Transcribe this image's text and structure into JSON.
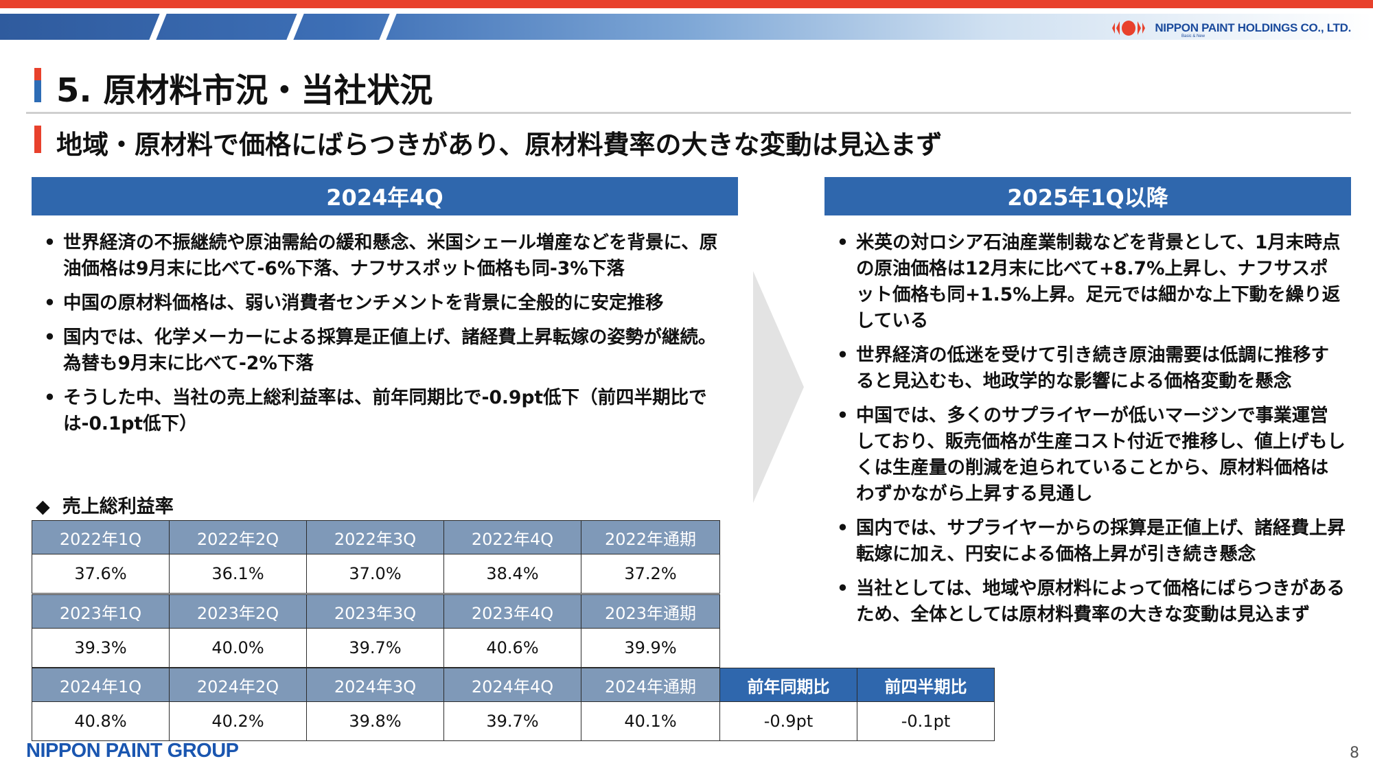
{
  "header": {
    "company": "NIPPON PAINT HOLDINGS CO., LTD.",
    "tagline": "Basic & New"
  },
  "title": "5. 原材料市況・当社状況",
  "subtitle": "地域・原材料で価格にばらつきがあり、原材料費率の大きな変動は見込まず",
  "left_panel": {
    "heading": "2024年4Q",
    "bullets": [
      "世界経済の不振継続や原油需給の緩和懸念、米国シェール増産などを背景に、原油価格は9月末に比べて-6%下落、ナフサスポット価格も同-3%下落",
      "中国の原材料価格は、弱い消費者センチメントを背景に全般的に安定推移",
      "国内では、化学メーカーによる採算是正値上げ、諸経費上昇転嫁の姿勢が継続。為替も9月末に比べて-2%下落",
      "そうした中、当社の売上総利益率は、前年同期比で-0.9pt低下（前四半期比では-0.1pt低下）"
    ]
  },
  "right_panel": {
    "heading": "2025年1Q以降",
    "bullets": [
      "米英の対ロシア石油産業制裁などを背景として、1月末時点の原油価格は12月末に比べて+8.7%上昇し、ナフサスポット価格も同+1.5%上昇。足元では細かな上下動を繰り返している",
      "世界経済の低迷を受けて引き続き原油需要は低調に推移すると見込むも、地政学的な影響による価格変動を懸念",
      "中国では、多くのサプライヤーが低いマージンで事業運営しており、販売価格が生産コスト付近で推移し、値上げもしくは生産量の削減を迫られていることから、原材料価格はわずかながら上昇する見通し",
      "国内では、サプライヤーからの採算是正値上げ、諸経費上昇転嫁に加え、円安による価格上昇が引き続き懸念",
      "当社としては、地域や原材料によって価格にばらつきがあるため、全体としては原材料費率の大きな変動は見込まず"
    ]
  },
  "gross_margin": {
    "heading": "売上総利益率",
    "bullet_symbol": "◆",
    "rows": [
      {
        "headers": [
          "2022年1Q",
          "2022年2Q",
          "2022年3Q",
          "2022年4Q",
          "2022年通期"
        ],
        "values": [
          "37.6%",
          "36.1%",
          "37.0%",
          "38.4%",
          "37.2%"
        ]
      },
      {
        "headers": [
          "2023年1Q",
          "2023年2Q",
          "2023年3Q",
          "2023年4Q",
          "2023年通期"
        ],
        "values": [
          "39.3%",
          "40.0%",
          "39.7%",
          "40.6%",
          "39.9%"
        ]
      },
      {
        "headers": [
          "2024年1Q",
          "2024年2Q",
          "2024年3Q",
          "2024年4Q",
          "2024年通期",
          "前年同期比",
          "前四半期比"
        ],
        "values": [
          "40.8%",
          "40.2%",
          "39.8%",
          "39.7%",
          "40.1%",
          "-0.9pt",
          "-0.1pt"
        ]
      }
    ]
  },
  "footer": {
    "group_logo": "NIPPON PAINT GROUP",
    "page_number": "8"
  },
  "colors": {
    "accent_red": "#e8412c",
    "panel_blue": "#2f67ad",
    "table_header": "#7f99b8",
    "logo_blue": "#1a4a9c"
  }
}
